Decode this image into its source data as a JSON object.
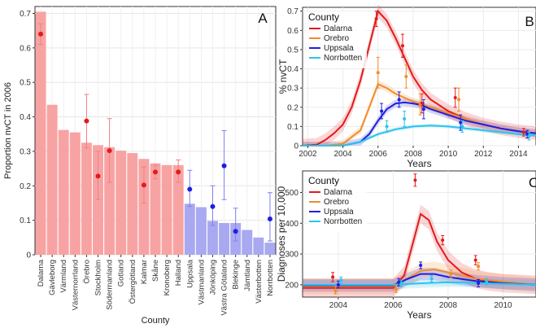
{
  "chart_data": [
    {
      "panel_label": "A",
      "type": "bar",
      "xlabel": "County",
      "ylabel": "Proportion nvCT in 2006",
      "ylim": [
        0,
        0.72
      ],
      "yticks": [
        0,
        0.1,
        0.2,
        0.3,
        0.4,
        0.5,
        0.6,
        0.7
      ],
      "grid": true,
      "categories": [
        "Dalarna",
        "Gävleborg",
        "Värmland",
        "Västernorrland",
        "Örebro",
        "Stockholm",
        "Södermanland",
        "Gotland",
        "Östergötland",
        "Kalmar",
        "Skåne",
        "Kronoberg",
        "Halland",
        "Uppsala",
        "Västmanland",
        "Jönköping",
        "Västra Götaland",
        "Blekinge",
        "Jämtland",
        "Västerbotten",
        "Norrbotten"
      ],
      "values": [
        0.705,
        0.435,
        0.362,
        0.355,
        0.325,
        0.318,
        0.312,
        0.302,
        0.295,
        0.278,
        0.265,
        0.26,
        0.26,
        0.148,
        0.138,
        0.098,
        0.092,
        0.092,
        0.072,
        0.05,
        0.035
      ],
      "bar_colors": {
        "red": "#F8A3A3",
        "blue": "#A9A9F1"
      },
      "red_count": 13,
      "observed_points": [
        {
          "category": "Dalarna",
          "value": 0.64,
          "low": 0.61,
          "high": 0.67,
          "color": "#E41A1C"
        },
        {
          "category": "Örebro",
          "value": 0.388,
          "low": 0.31,
          "high": 0.465,
          "color": "#E41A1C"
        },
        {
          "category": "Stockholm",
          "value": 0.228,
          "low": 0.16,
          "high": 0.3,
          "color": "#E41A1C"
        },
        {
          "category": "Södermanland",
          "value": 0.302,
          "low": 0.21,
          "high": 0.395,
          "color": "#E41A1C"
        },
        {
          "category": "Kalmar",
          "value": 0.202,
          "low": 0.15,
          "high": 0.255,
          "color": "#E41A1C"
        },
        {
          "category": "Skåne",
          "value": 0.24,
          "low": 0.22,
          "high": 0.26,
          "color": "#E41A1C"
        },
        {
          "category": "Halland",
          "value": 0.24,
          "low": 0.21,
          "high": 0.275,
          "color": "#E41A1C"
        },
        {
          "category": "Uppsala",
          "value": 0.19,
          "low": 0.14,
          "high": 0.245,
          "color": "#1F1FE0"
        },
        {
          "category": "Jönköping",
          "value": 0.14,
          "low": 0.085,
          "high": 0.2,
          "color": "#1F1FE0"
        },
        {
          "category": "Västra Götaland",
          "value": 0.258,
          "low": 0.16,
          "high": 0.36,
          "color": "#1F1FE0"
        },
        {
          "category": "Blekinge",
          "value": 0.068,
          "low": 0.04,
          "high": 0.135,
          "color": "#1F1FE0"
        },
        {
          "category": "Norrbotten",
          "value": 0.104,
          "low": 0.04,
          "high": 0.18,
          "color": "#1F1FE0"
        }
      ]
    },
    {
      "panel_label": "B",
      "type": "line",
      "xlabel": "Years",
      "ylabel": "% nvCT",
      "xlim": [
        2001.7,
        2015
      ],
      "ylim": [
        0,
        0.72
      ],
      "xticks": [
        2002,
        2004,
        2006,
        2008,
        2010,
        2012,
        2014
      ],
      "yticks": [
        0,
        0.1,
        0.2,
        0.3,
        0.4,
        0.5,
        0.6,
        0.7
      ],
      "legend": {
        "title": "County",
        "placement": "top-left"
      },
      "series": [
        {
          "name": "Dalarna",
          "color": "#E41A1C",
          "x": [
            2001.7,
            2002.5,
            2003,
            2003.5,
            2004,
            2004.5,
            2005,
            2005.5,
            2006,
            2006.5,
            2007,
            2007.5,
            2008,
            2008.5,
            2009,
            2010,
            2011,
            2012,
            2013,
            2014,
            2015
          ],
          "y": [
            0.0,
            0.005,
            0.03,
            0.065,
            0.11,
            0.2,
            0.34,
            0.52,
            0.7,
            0.65,
            0.56,
            0.46,
            0.36,
            0.29,
            0.24,
            0.18,
            0.14,
            0.11,
            0.09,
            0.075,
            0.065
          ],
          "band": 0.035,
          "points": [
            {
              "x": 2005.9,
              "y": 0.66,
              "low": 0.62,
              "high": 0.7
            },
            {
              "x": 2007.4,
              "y": 0.52,
              "low": 0.46,
              "high": 0.58
            },
            {
              "x": 2008.5,
              "y": 0.22,
              "low": 0.17,
              "high": 0.27
            },
            {
              "x": 2010.4,
              "y": 0.25,
              "low": 0.2,
              "high": 0.3
            },
            {
              "x": 2014.3,
              "y": 0.07,
              "low": 0.05,
              "high": 0.09
            }
          ]
        },
        {
          "name": "Orebro",
          "color": "#F28C28",
          "x": [
            2001.7,
            2003,
            2004,
            2005,
            2005.5,
            2006,
            2006.5,
            2007,
            2007.5,
            2008,
            2009,
            2010,
            2011,
            2012,
            2013,
            2014,
            2015
          ],
          "y": [
            0.0,
            0.0,
            0.01,
            0.08,
            0.2,
            0.32,
            0.3,
            0.27,
            0.25,
            0.23,
            0.2,
            0.17,
            0.14,
            0.11,
            0.09,
            0.075,
            0.065
          ],
          "band": 0.02,
          "points": [
            {
              "x": 2006.0,
              "y": 0.38,
              "low": 0.3,
              "high": 0.46
            },
            {
              "x": 2007.6,
              "y": 0.36,
              "low": 0.3,
              "high": 0.42
            },
            {
              "x": 2008.4,
              "y": 0.21,
              "low": 0.16,
              "high": 0.27
            },
            {
              "x": 2010.6,
              "y": 0.24,
              "low": 0.18,
              "high": 0.3
            },
            {
              "x": 2014.5,
              "y": 0.06,
              "low": 0.04,
              "high": 0.08
            }
          ]
        },
        {
          "name": "Uppsala",
          "color": "#1F1FE0",
          "x": [
            2001.7,
            2004,
            2005,
            2005.5,
            2006,
            2006.5,
            2007,
            2007.5,
            2008,
            2008.5,
            2009,
            2010,
            2011,
            2012,
            2013,
            2014,
            2015
          ],
          "y": [
            0.0,
            0.0,
            0.02,
            0.06,
            0.13,
            0.19,
            0.22,
            0.225,
            0.22,
            0.21,
            0.19,
            0.16,
            0.13,
            0.11,
            0.09,
            0.075,
            0.065
          ],
          "band": 0.02,
          "points": [
            {
              "x": 2006.2,
              "y": 0.18,
              "low": 0.14,
              "high": 0.22
            },
            {
              "x": 2007.2,
              "y": 0.24,
              "low": 0.2,
              "high": 0.28
            },
            {
              "x": 2008.6,
              "y": 0.19,
              "low": 0.14,
              "high": 0.24
            },
            {
              "x": 2010.7,
              "y": 0.12,
              "low": 0.08,
              "high": 0.16
            },
            {
              "x": 2014.5,
              "y": 0.06,
              "low": 0.04,
              "high": 0.08
            }
          ]
        },
        {
          "name": "Norrbotten",
          "color": "#2BC4EE",
          "x": [
            2001.7,
            2004,
            2005,
            2006,
            2007,
            2008,
            2009,
            2010,
            2011,
            2012,
            2013,
            2014,
            2015
          ],
          "y": [
            0.0,
            0.0,
            0.02,
            0.06,
            0.085,
            0.1,
            0.105,
            0.1,
            0.09,
            0.08,
            0.07,
            0.06,
            0.055
          ],
          "band": 0.01,
          "points": [
            {
              "x": 2006.5,
              "y": 0.1,
              "low": 0.07,
              "high": 0.13
            },
            {
              "x": 2007.5,
              "y": 0.14,
              "low": 0.1,
              "high": 0.18
            },
            {
              "x": 2010.8,
              "y": 0.1,
              "low": 0.07,
              "high": 0.13
            },
            {
              "x": 2014.6,
              "y": 0.05,
              "low": 0.03,
              "high": 0.07
            }
          ]
        }
      ]
    },
    {
      "panel_label": "C",
      "type": "line",
      "xlabel": "Years",
      "ylabel": "Diagnoses per 10,000",
      "xlim": [
        2002.7,
        2011.2
      ],
      "ylim": [
        160,
        570
      ],
      "xticks": [
        2004,
        2006,
        2008,
        2010
      ],
      "yticks": [
        200,
        300,
        400,
        500
      ],
      "legend": {
        "title": "County",
        "placement": "top-left"
      },
      "series": [
        {
          "name": "Dalarna",
          "color": "#E41A1C",
          "x": [
            2002.7,
            2004,
            2005,
            2006,
            2006.4,
            2006.7,
            2007,
            2007.3,
            2007.6,
            2008,
            2008.5,
            2009,
            2009.5,
            2010,
            2011.2
          ],
          "y": [
            190,
            190,
            190,
            190,
            230,
            330,
            430,
            410,
            340,
            280,
            240,
            220,
            210,
            205,
            200
          ],
          "band": 30,
          "points": [
            {
              "x": 2003.8,
              "y": 225,
              "low": 210,
              "high": 240
            },
            {
              "x": 2006.8,
              "y": 540,
              "low": 520,
              "high": 560
            },
            {
              "x": 2007.8,
              "y": 345,
              "low": 330,
              "high": 360
            },
            {
              "x": 2009,
              "y": 280,
              "low": 265,
              "high": 295
            }
          ]
        },
        {
          "name": "Orebro",
          "color": "#F28C28",
          "x": [
            2002.7,
            2006,
            2006.5,
            2007,
            2007.5,
            2008,
            2009,
            2010,
            2011.2
          ],
          "y": [
            195,
            195,
            220,
            245,
            250,
            240,
            220,
            210,
            200
          ],
          "band": 25,
          "points": [
            {
              "x": 2003.9,
              "y": 180,
              "low": 170,
              "high": 195
            },
            {
              "x": 2006.1,
              "y": 185,
              "low": 175,
              "high": 198
            },
            {
              "x": 2008.1,
              "y": 235,
              "low": 222,
              "high": 248
            },
            {
              "x": 2009.1,
              "y": 260,
              "low": 248,
              "high": 272
            }
          ]
        },
        {
          "name": "Uppsala",
          "color": "#1F1FE0",
          "x": [
            2002.7,
            2006,
            2006.5,
            2007,
            2007.5,
            2008,
            2009,
            2010,
            2011.2
          ],
          "y": [
            198,
            198,
            218,
            235,
            235,
            225,
            212,
            205,
            200
          ],
          "band": 20,
          "points": [
            {
              "x": 2004,
              "y": 200,
              "low": 190,
              "high": 212
            },
            {
              "x": 2006.2,
              "y": 208,
              "low": 196,
              "high": 220
            },
            {
              "x": 2007,
              "y": 263,
              "low": 252,
              "high": 274
            },
            {
              "x": 2009.1,
              "y": 205,
              "low": 193,
              "high": 217
            }
          ]
        },
        {
          "name": "Norrbotten",
          "color": "#2BC4EE",
          "x": [
            2002.7,
            2006,
            2007,
            2008,
            2009,
            2010,
            2011.2
          ],
          "y": [
            200,
            200,
            205,
            208,
            206,
            203,
            200
          ],
          "band": 15,
          "points": [
            {
              "x": 2004.1,
              "y": 215,
              "low": 205,
              "high": 225
            },
            {
              "x": 2006.3,
              "y": 205,
              "low": 195,
              "high": 215
            },
            {
              "x": 2007.4,
              "y": 220,
              "low": 210,
              "high": 230
            },
            {
              "x": 2009.4,
              "y": 210,
              "low": 200,
              "high": 220
            }
          ]
        }
      ]
    }
  ]
}
